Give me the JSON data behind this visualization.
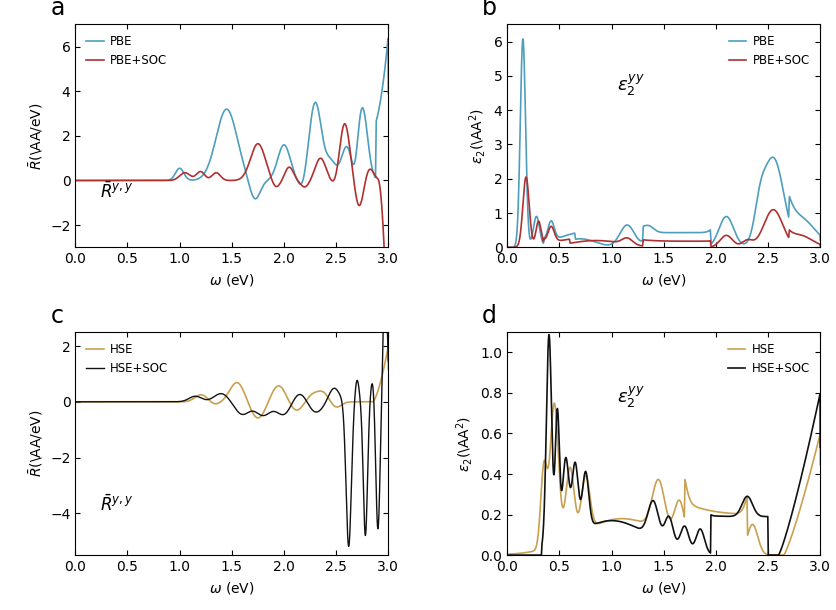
{
  "panel_labels": [
    "a",
    "b",
    "c",
    "d"
  ],
  "colors": {
    "pbe": "#4E9EBD",
    "pbe_soc": "#B03030",
    "hse": "#C8A050",
    "hse_soc": "#111111"
  },
  "xlim": [
    0.0,
    3.0
  ],
  "panel_a": {
    "ylabel": "$\\bar{R}$(\\AA/eV)",
    "xlabel": "$\\omega$ (eV)",
    "ylim": [
      -3,
      7
    ],
    "yticks": [
      -2,
      0,
      2,
      4,
      6
    ],
    "annotation": "$\\bar{R}^{y,y}$",
    "legend": [
      "PBE",
      "PBE+SOC"
    ],
    "legend_loc": "upper left"
  },
  "panel_b": {
    "ylabel": "$\\varepsilon_2$(\\AA$^2$)",
    "xlabel": "$\\omega$ (eV)",
    "ylim": [
      0,
      6.5
    ],
    "yticks": [
      0,
      1,
      2,
      3,
      4,
      5,
      6
    ],
    "annotation": "$\\varepsilon_2^{yy}$",
    "legend": [
      "PBE",
      "PBE+SOC"
    ],
    "legend_loc": "upper right"
  },
  "panel_c": {
    "ylabel": "$\\bar{R}$(\\AA/eV)",
    "xlabel": "$\\omega$ (eV)",
    "ylim": [
      -5.5,
      2.5
    ],
    "yticks": [
      -4,
      -2,
      0,
      2
    ],
    "annotation": "$\\bar{R}^{y,y}$",
    "legend": [
      "HSE",
      "HSE+SOC"
    ],
    "legend_loc": "upper left"
  },
  "panel_d": {
    "ylabel": "$\\varepsilon_2$(\\AA$^2$)",
    "xlabel": "$\\omega$ (eV)",
    "ylim": [
      0,
      1.1
    ],
    "yticks": [
      0.0,
      0.2,
      0.4,
      0.6,
      0.8,
      1.0
    ],
    "annotation": "$\\varepsilon_2^{yy}$",
    "legend": [
      "HSE",
      "HSE+SOC"
    ],
    "legend_loc": "upper right"
  },
  "background_color": "#ffffff",
  "figure_facecolor": "#ffffff"
}
